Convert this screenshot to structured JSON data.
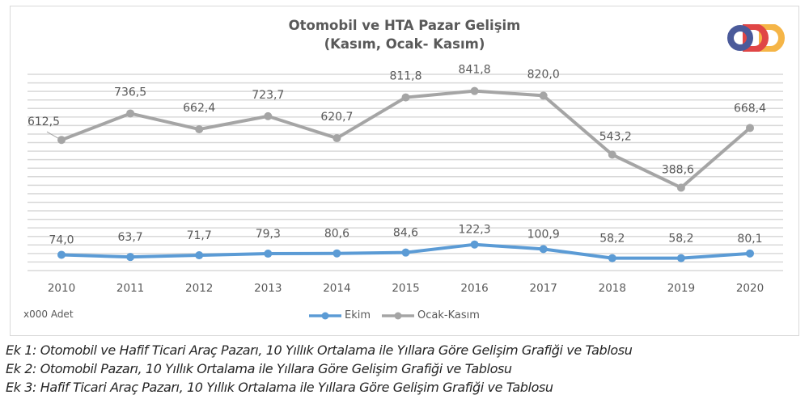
{
  "header": {
    "title_line1": "Otomobil ve HTA Pazar Gelişim",
    "title_line2": "(Kasım, Ocak- Kasım)"
  },
  "logo": {
    "name": "ODD",
    "colors": [
      "#4a5a9a",
      "#e04646",
      "#f5b547"
    ]
  },
  "unit_label": "x000 Adet",
  "legend": [
    {
      "label": "Ekim",
      "color": "#5b9bd5"
    },
    {
      "label": "Ocak-Kasım",
      "color": "#a5a5a5"
    }
  ],
  "captions": [
    "Ek 1: Otomobil ve Hafif Ticari Araç Pazarı, 10 Yıllık Ortalama ile Yıllara Göre Gelişim Grafiği ve Tablosu",
    "Ek 2: Otomobil Pazarı, 10 Yıllık Ortalama ile Yıllara Göre Gelişim Grafiği ve Tablosu",
    "Ek 3: Hafif Ticari Araç Pazarı, 10 Yıllık Ortalama ile Yıllara Göre Gelişim Grafiği ve Tablosu"
  ],
  "chart_data": {
    "type": "line",
    "title": "Otomobil ve HTA Pazar Gelişim (Kasım, Ocak- Kasım)",
    "xlabel": "",
    "ylabel": "x000 Adet",
    "categories": [
      "2010",
      "2011",
      "2012",
      "2013",
      "2014",
      "2015",
      "2016",
      "2017",
      "2018",
      "2019",
      "2020"
    ],
    "series": [
      {
        "name": "Ekim",
        "color": "#5b9bd5",
        "values": [
          74.0,
          63.7,
          71.7,
          79.3,
          80.6,
          84.6,
          122.3,
          100.9,
          58.2,
          58.2,
          80.1
        ],
        "labels": [
          "74,0",
          "63,7",
          "71,7",
          "79,3",
          "80,6",
          "84,6",
          "122,3",
          "100,9",
          "58,2",
          "58,2",
          "80,1"
        ]
      },
      {
        "name": "Ocak-Kasım",
        "color": "#a5a5a5",
        "values": [
          612.5,
          736.5,
          662.4,
          723.7,
          620.7,
          811.8,
          841.8,
          820.0,
          543.2,
          388.6,
          668.4
        ],
        "labels": [
          "612,5",
          "736,5",
          "662,4",
          "723,7",
          "620,7",
          "811,8",
          "841,8",
          "820,0",
          "543,2",
          "388,6",
          "668,4"
        ]
      }
    ],
    "ylim": [
      0,
      920
    ],
    "grid": true,
    "gridline_step": 40,
    "y_axis_visible": false,
    "legend_position": "bottom"
  }
}
